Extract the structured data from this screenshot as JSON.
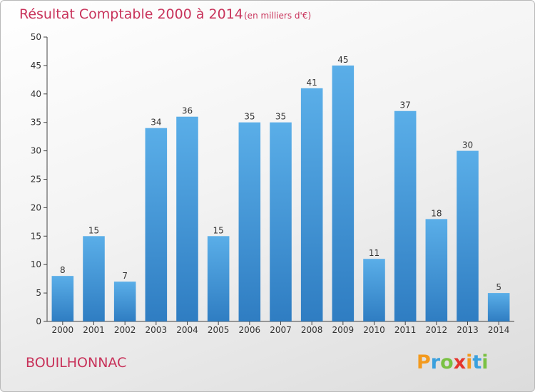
{
  "page": {
    "commune": "BOUILHONNAC",
    "brand": {
      "letters": [
        "P",
        "r",
        "o",
        "x",
        "i",
        "t",
        "i"
      ],
      "colors": [
        "#f39a1e",
        "#3aa0dd",
        "#7ac143",
        "#e5352d",
        "#f39a1e",
        "#3aa0dd",
        "#7ac143"
      ]
    }
  },
  "chart_data": {
    "type": "bar",
    "title": "Résultat Comptable 2000 à 2014",
    "subtitle": "(en milliers d'€)",
    "xlabel": "",
    "ylabel": "",
    "categories": [
      "2000",
      "2001",
      "2002",
      "2003",
      "2004",
      "2005",
      "2006",
      "2007",
      "2008",
      "2009",
      "2010",
      "2011",
      "2012",
      "2013",
      "2014"
    ],
    "values": [
      8,
      15,
      7,
      34,
      36,
      15,
      35,
      35,
      41,
      45,
      11,
      37,
      18,
      30,
      5
    ],
    "ylim": [
      0,
      50
    ],
    "yticks": [
      0,
      5,
      10,
      15,
      20,
      25,
      30,
      35,
      40,
      45,
      50
    ],
    "grid": false,
    "colors": {
      "bar_top": "#5aaee8",
      "bar_bottom": "#2f7dc2",
      "title": "#c8325a",
      "axis": "#444444"
    }
  }
}
